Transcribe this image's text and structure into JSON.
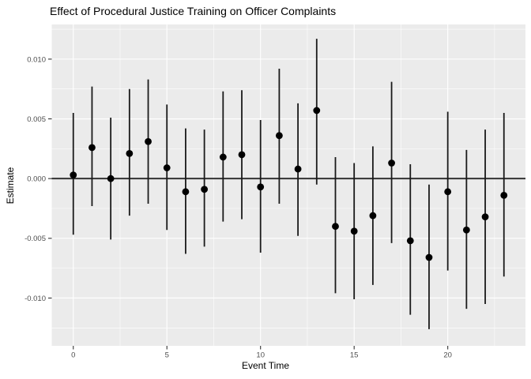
{
  "chart_data": {
    "type": "scatter",
    "subtype": "errorbar-event-study",
    "title": "Effect of Procedural Justice Training on Officer Complaints",
    "xlabel": "Event Time",
    "ylabel": "Estimate",
    "x": [
      0,
      1,
      2,
      3,
      4,
      5,
      6,
      7,
      8,
      9,
      10,
      11,
      12,
      13,
      14,
      15,
      16,
      17,
      18,
      19,
      20,
      21,
      22,
      23
    ],
    "series": [
      {
        "name": "estimate",
        "values": [
          0.0003,
          0.0026,
          0.0,
          0.0021,
          0.0031,
          0.0009,
          -0.0011,
          -0.0009,
          0.0018,
          0.002,
          -0.0007,
          0.0036,
          0.0008,
          0.0057,
          -0.004,
          -0.0044,
          -0.0031,
          0.0013,
          -0.0052,
          -0.0066,
          -0.0011,
          -0.0043,
          -0.0032,
          -0.0014
        ]
      }
    ],
    "ci_lower": [
      -0.0047,
      -0.0023,
      -0.0051,
      -0.0031,
      -0.0021,
      -0.0043,
      -0.0063,
      -0.0057,
      -0.0036,
      -0.0034,
      -0.0062,
      -0.0021,
      -0.0048,
      -0.0005,
      -0.0096,
      -0.0101,
      -0.0089,
      -0.0054,
      -0.0114,
      -0.0126,
      -0.0077,
      -0.0109,
      -0.0105,
      -0.0082
    ],
    "ci_upper": [
      0.0055,
      0.0077,
      0.0051,
      0.0075,
      0.0083,
      0.0062,
      0.0042,
      0.0041,
      0.0073,
      0.0074,
      0.0049,
      0.0092,
      0.0063,
      0.0117,
      0.0018,
      0.0013,
      0.0027,
      0.0081,
      0.0012,
      -0.0005,
      0.0056,
      0.0024,
      0.0041,
      0.0055
    ],
    "hline": 0,
    "xticks": [
      0,
      5,
      10,
      15,
      20
    ],
    "xticks_minor": [
      2.5,
      7.5,
      12.5,
      17.5,
      22.5
    ],
    "yticks": [
      0.01,
      0.005,
      0.0,
      -0.005,
      -0.01
    ],
    "ytick_labels": [
      "0.010",
      "0.005",
      "0.000",
      "-0.005",
      "-0.010"
    ],
    "yticks_minor": [
      0.0125,
      0.0075,
      0.0025,
      -0.0025,
      -0.0075,
      -0.0125
    ],
    "xlim": [
      -1.15,
      24.15
    ],
    "ylim": [
      -0.014,
      0.0129
    ],
    "grid": true,
    "legend": "none",
    "colors": {
      "bg": "#FFFFFF",
      "panel_bg": "#EBEBEB",
      "grid": "#FFFFFF",
      "point": "#000000",
      "errorbar": "#1A1A1A",
      "zero_line": "#333333",
      "tick_mark": "#333333",
      "tick_label": "#4D4D4D",
      "axis_title": "#000000",
      "title": "#000000"
    }
  }
}
